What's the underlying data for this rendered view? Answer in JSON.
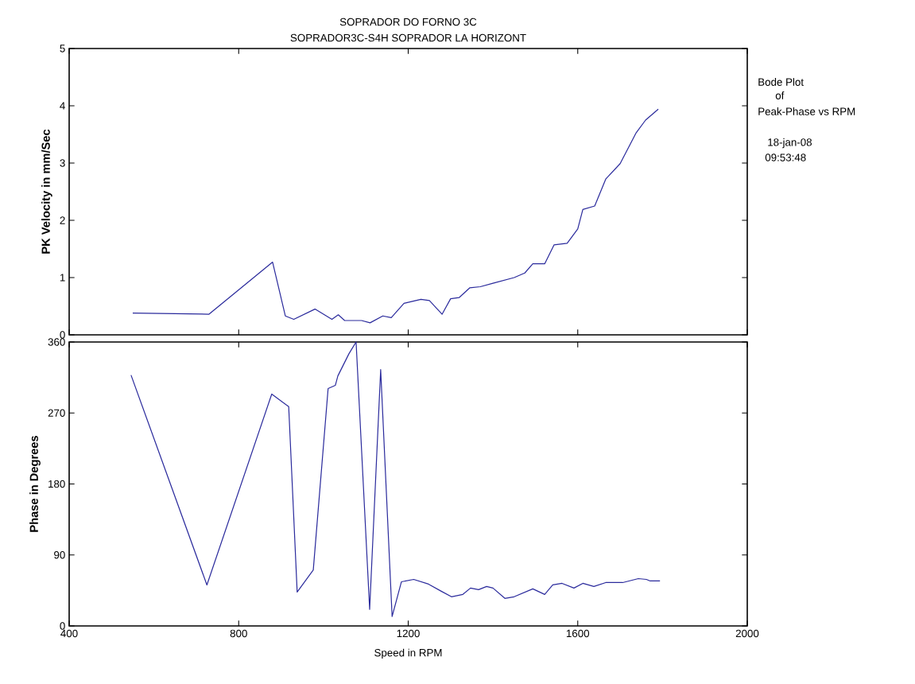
{
  "chart_data": [
    {
      "type": "line",
      "title": "SOPRADOR DO FORNO 3C",
      "subtitle": "SOPRADOR3C-S4H   SOPRADOR LA HORIZONT",
      "ylabel": "PK Velocity in mm/Sec",
      "annotations": [
        "Bode Plot",
        "of",
        "Peak-Phase vs RPM",
        "18-jan-08",
        "09:53:48"
      ],
      "x": [
        550,
        640,
        730,
        880,
        910,
        930,
        980,
        1020,
        1035,
        1050,
        1090,
        1110,
        1140,
        1160,
        1190,
        1230,
        1250,
        1280,
        1300,
        1320,
        1345,
        1370,
        1400,
        1450,
        1475,
        1494,
        1522,
        1544,
        1575,
        1600,
        1612,
        1640,
        1666,
        1700,
        1738,
        1760,
        1790
      ],
      "values": [
        0.38,
        0.37,
        0.36,
        1.27,
        0.33,
        0.27,
        0.45,
        0.27,
        0.35,
        0.25,
        0.25,
        0.21,
        0.33,
        0.3,
        0.55,
        0.62,
        0.6,
        0.36,
        0.63,
        0.65,
        0.82,
        0.84,
        0.9,
        1.0,
        1.08,
        1.24,
        1.24,
        1.57,
        1.6,
        1.85,
        2.19,
        2.25,
        2.72,
        2.99,
        3.53,
        3.75,
        3.94
      ],
      "color": "#2a2a9c",
      "xlim": [
        400,
        2000
      ],
      "xticks": [
        400,
        800,
        1200,
        1600,
        2000
      ],
      "ylim": [
        0,
        5
      ],
      "yticks": [
        0,
        1,
        2,
        3,
        4,
        5
      ],
      "tick_labels": "y"
    },
    {
      "type": "line",
      "ylabel": "Phase in Degrees",
      "xlabel": "Speed in RPM",
      "x": [
        546,
        725,
        878,
        918,
        938,
        976,
        1011,
        1028,
        1034,
        1060,
        1077,
        1109,
        1135,
        1162,
        1184,
        1213,
        1248,
        1278,
        1302,
        1329,
        1347,
        1366,
        1385,
        1400,
        1428,
        1450,
        1494,
        1522,
        1541,
        1563,
        1591,
        1612,
        1638,
        1666,
        1706,
        1743,
        1762,
        1771,
        1794
      ],
      "values": [
        318,
        52,
        294,
        278,
        43,
        71,
        301,
        305,
        317,
        345,
        360,
        21,
        325,
        12,
        56,
        59,
        53,
        44,
        37,
        40,
        48,
        46,
        50,
        48,
        35,
        37,
        47,
        40,
        52,
        54,
        48,
        54,
        50,
        55,
        55,
        60,
        59,
        57,
        57
      ],
      "color": "#2a2a9c",
      "xlim": [
        400,
        2000
      ],
      "xticks": [
        400,
        800,
        1200,
        1600,
        2000
      ],
      "ylim": [
        0,
        360
      ],
      "yticks": [
        0,
        90,
        180,
        270,
        360
      ]
    }
  ]
}
